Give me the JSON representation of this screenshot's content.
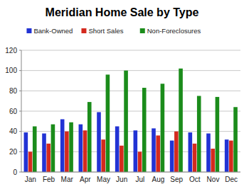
{
  "chart_data": {
    "type": "bar",
    "title": "Meridian Home Sale by Type",
    "categories": [
      "Jan",
      "Feb",
      "Mar",
      "Apr",
      "May",
      "Jun",
      "Jul",
      "Aug",
      "Sep",
      "Oct",
      "Nov",
      "Dec"
    ],
    "series": [
      {
        "name": "Bank-Owned",
        "color": "#2233d4",
        "values": [
          39,
          38,
          52,
          47,
          59,
          45,
          41,
          43,
          31,
          39,
          38,
          32
        ]
      },
      {
        "name": "Short Sales",
        "color": "#d42a1e",
        "values": [
          20,
          28,
          40,
          41,
          32,
          26,
          20,
          36,
          40,
          28,
          23,
          31
        ]
      },
      {
        "name": "Non-Foreclosures",
        "color": "#1b8c1b",
        "values": [
          45,
          47,
          49,
          69,
          96,
          100,
          83,
          87,
          102,
          75,
          74,
          64
        ]
      }
    ],
    "ylim": [
      0,
      120
    ],
    "yticks": [
      0,
      20,
      40,
      60,
      80,
      100,
      120
    ],
    "grid": true,
    "legend": "top"
  }
}
